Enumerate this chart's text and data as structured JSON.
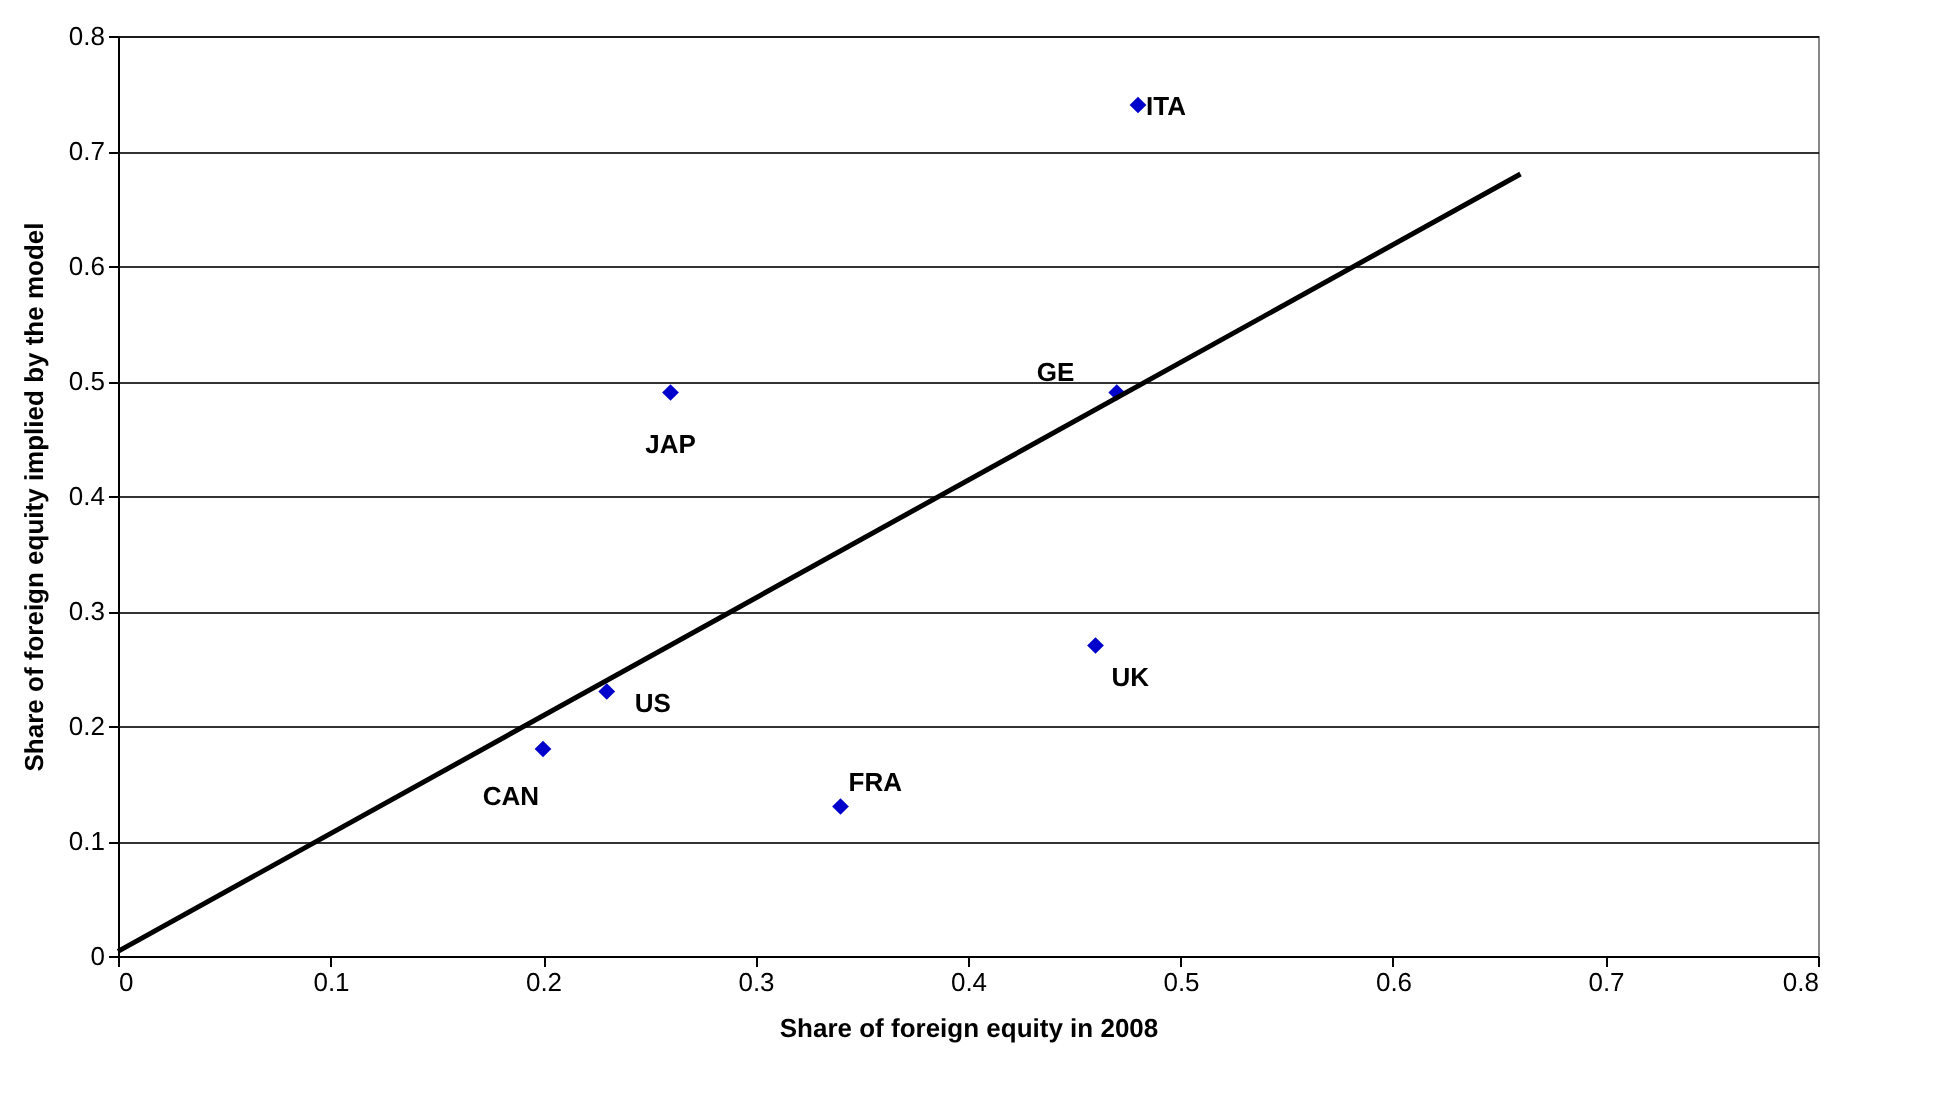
{
  "chart_data": {
    "type": "scatter",
    "xlabel": "Share of foreign equity in 2008",
    "ylabel": "Share of foreign equity implied by the model",
    "series": [
      {
        "color": "#0000cc",
        "marker": "diamond",
        "x": [
          0.2,
          0.23,
          0.26,
          0.34,
          0.46,
          0.47,
          0.48
        ],
        "values": [
          0.18,
          0.23,
          0.49,
          0.13,
          0.27,
          0.49,
          0.74
        ]
      },
      {
        "type": "line",
        "color": "#000000",
        "line_style": "solid",
        "x": [
          0,
          0.66
        ],
        "values": [
          0.004,
          0.68
        ]
      }
    ],
    "annotations": [
      {
        "text": "CAN",
        "x": 0.2,
        "y": 0.18
      },
      {
        "text": "US",
        "x": 0.23,
        "y": 0.23
      },
      {
        "text": "JAP",
        "x": 0.26,
        "y": 0.49
      },
      {
        "text": "FRA",
        "x": 0.34,
        "y": 0.13
      },
      {
        "text": "UK",
        "x": 0.46,
        "y": 0.27
      },
      {
        "text": "GE",
        "x": 0.47,
        "y": 0.49
      },
      {
        "text": "ITA",
        "x": 0.48,
        "y": 0.74
      }
    ],
    "xlim": [
      0,
      0.8
    ],
    "xticks": [
      0,
      0.1,
      0.2,
      0.3,
      0.4,
      0.5,
      0.6,
      0.7,
      0.8
    ],
    "ylim": [
      0,
      0.8
    ],
    "yticks": [
      0,
      0.1,
      0.2,
      0.3,
      0.4,
      0.5,
      0.6,
      0.7,
      0.8
    ],
    "grid": "y"
  }
}
